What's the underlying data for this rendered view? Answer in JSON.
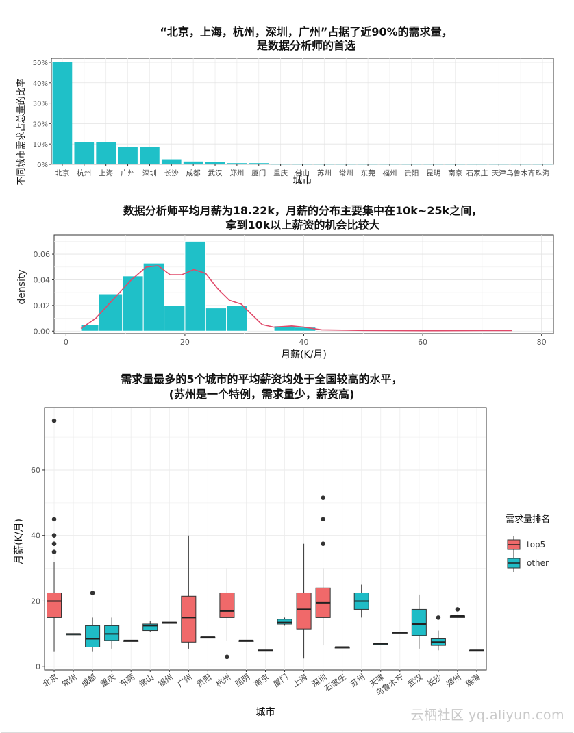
{
  "chart_data": [
    {
      "type": "bar",
      "title_lines": [
        "“北京，上海，杭州，深圳，广州”占据了近90%的需求量，",
        "是数据分析师的首选"
      ],
      "xlabel": "城市",
      "ylabel": "不同城市需求占总量的比率",
      "categories": [
        "北京",
        "杭州",
        "上海",
        "广州",
        "深圳",
        "长沙",
        "成都",
        "武汉",
        "郑州",
        "厦门",
        "重庆",
        "佛山",
        "苏州",
        "常州",
        "东莞",
        "福州",
        "贵阳",
        "昆明",
        "南京",
        "石家庄",
        "天津",
        "乌鲁木齐",
        "珠海"
      ],
      "values": [
        0.5,
        0.11,
        0.11,
        0.087,
        0.087,
        0.025,
        0.014,
        0.011,
        0.006,
        0.006,
        0.002,
        0.002,
        0.002,
        0.002,
        0.002,
        0.002,
        0.002,
        0.002,
        0.002,
        0.002,
        0.002,
        0.002,
        0.002
      ],
      "ylim": [
        0,
        0.52
      ],
      "yticks": [
        "0%",
        "10%",
        "20%",
        "30%",
        "40%",
        "50%"
      ],
      "color": "#1fc0c8"
    },
    {
      "type": "histogram",
      "title_lines": [
        "数据分析师平均月薪为18.22k，月薪的分布主要集中在10k~25k之间，",
        "拿到10k以上薪资的机会比较大"
      ],
      "xlabel": "月薪(K/月)",
      "ylabel": "density",
      "bins": [
        {
          "x0": 2.5,
          "x1": 5.5,
          "density": 0.005
        },
        {
          "x0": 5.5,
          "x1": 9.5,
          "density": 0.029
        },
        {
          "x0": 9.5,
          "x1": 13.0,
          "density": 0.043
        },
        {
          "x0": 13.0,
          "x1": 16.5,
          "density": 0.053
        },
        {
          "x0": 16.5,
          "x1": 20.0,
          "density": 0.02
        },
        {
          "x0": 20.0,
          "x1": 23.5,
          "density": 0.07
        },
        {
          "x0": 23.5,
          "x1": 27.0,
          "density": 0.018
        },
        {
          "x0": 27.0,
          "x1": 30.5,
          "density": 0.02
        },
        {
          "x0": 35.0,
          "x1": 38.5,
          "density": 0.004
        },
        {
          "x0": 38.5,
          "x1": 42.0,
          "density": 0.003
        }
      ],
      "density_curve": [
        [
          2.5,
          0.002
        ],
        [
          5,
          0.01
        ],
        [
          8,
          0.025
        ],
        [
          11,
          0.04
        ],
        [
          13.5,
          0.05
        ],
        [
          15.5,
          0.051
        ],
        [
          17.5,
          0.044
        ],
        [
          19.5,
          0.044
        ],
        [
          21.5,
          0.048
        ],
        [
          23.5,
          0.045
        ],
        [
          25.5,
          0.033
        ],
        [
          27.5,
          0.024
        ],
        [
          29.5,
          0.021
        ],
        [
          31,
          0.014
        ],
        [
          33,
          0.005
        ],
        [
          35,
          0.003
        ],
        [
          38,
          0.004
        ],
        [
          40,
          0.003
        ],
        [
          43,
          0.001
        ],
        [
          50,
          0.0005
        ],
        [
          60,
          0.0003
        ],
        [
          70,
          0.0004
        ],
        [
          75,
          0.0004
        ]
      ],
      "xlim": [
        -2,
        82
      ],
      "ylim": [
        -0.002,
        0.075
      ],
      "xticks": [
        0,
        20,
        40,
        60,
        80
      ],
      "yticks": [
        0.0,
        0.02,
        0.04,
        0.06
      ],
      "bar_color": "#1fc0c8",
      "curve_color": "#e04a6a"
    },
    {
      "type": "boxplot",
      "title_lines": [
        "需求量最多的5个城市的平均薪资均处于全国较高的水平，",
        "(苏州是一个特例，需求量少，薪资高)"
      ],
      "xlabel": "城市",
      "ylabel": "月薪(K/月)",
      "ylim": [
        -1,
        79
      ],
      "yticks": [
        0,
        20,
        40,
        60
      ],
      "legend": {
        "title": "需求量排名",
        "position": "right",
        "items": [
          {
            "label": "top5",
            "color": "#f0696a"
          },
          {
            "label": "other",
            "color": "#1fbcc6"
          }
        ]
      },
      "boxes": [
        {
          "city": "北京",
          "group": "top5",
          "min": 4.5,
          "q1": 15,
          "median": 20,
          "q3": 22.5,
          "max": 32,
          "outliers": [
            35,
            37.5,
            40,
            45,
            75
          ]
        },
        {
          "city": "常州",
          "group": "other",
          "min": 10,
          "q1": 10,
          "median": 10,
          "q3": 10,
          "max": 10,
          "outliers": []
        },
        {
          "city": "成都",
          "group": "other",
          "min": 4.5,
          "q1": 6,
          "median": 8.5,
          "q3": 12.5,
          "max": 15,
          "outliers": [
            22.5
          ]
        },
        {
          "city": "重庆",
          "group": "other",
          "min": 5.5,
          "q1": 8,
          "median": 10,
          "q3": 12.5,
          "max": 15,
          "outliers": []
        },
        {
          "city": "东莞",
          "group": "other",
          "min": 8,
          "q1": 8,
          "median": 8,
          "q3": 8,
          "max": 8,
          "outliers": []
        },
        {
          "city": "佛山",
          "group": "other",
          "min": 10.5,
          "q1": 11,
          "median": 12.5,
          "q3": 13,
          "max": 14,
          "outliers": []
        },
        {
          "city": "福州",
          "group": "other",
          "min": 13.5,
          "q1": 13.5,
          "median": 13.5,
          "q3": 13.5,
          "max": 13.5,
          "outliers": []
        },
        {
          "city": "广州",
          "group": "top5",
          "min": 5.5,
          "q1": 7.5,
          "median": 15,
          "q3": 21.5,
          "max": 40,
          "outliers": []
        },
        {
          "city": "贵阳",
          "group": "other",
          "min": 9,
          "q1": 9,
          "median": 9,
          "q3": 9,
          "max": 9,
          "outliers": []
        },
        {
          "city": "杭州",
          "group": "top5",
          "min": 8,
          "q1": 15,
          "median": 17,
          "q3": 22.5,
          "max": 30,
          "outliers": [
            3
          ]
        },
        {
          "city": "昆明",
          "group": "other",
          "min": 8,
          "q1": 8,
          "median": 8,
          "q3": 8,
          "max": 8,
          "outliers": []
        },
        {
          "city": "南京",
          "group": "other",
          "min": 5,
          "q1": 5,
          "median": 5,
          "q3": 5,
          "max": 5,
          "outliers": []
        },
        {
          "city": "厦门",
          "group": "other",
          "min": 12.5,
          "q1": 13,
          "median": 13.5,
          "q3": 14.5,
          "max": 15,
          "outliers": []
        },
        {
          "city": "上海",
          "group": "top5",
          "min": 2.5,
          "q1": 11.5,
          "median": 17.5,
          "q3": 22.5,
          "max": 37.5,
          "outliers": []
        },
        {
          "city": "深圳",
          "group": "top5",
          "min": 6.5,
          "q1": 15,
          "median": 19.5,
          "q3": 24,
          "max": 30,
          "outliers": [
            37.5,
            45,
            51.5
          ]
        },
        {
          "city": "石家庄",
          "group": "other",
          "min": 6,
          "q1": 6,
          "median": 6,
          "q3": 6,
          "max": 6,
          "outliers": []
        },
        {
          "city": "苏州",
          "group": "other",
          "min": 15,
          "q1": 17.5,
          "median": 20,
          "q3": 22.5,
          "max": 25,
          "outliers": []
        },
        {
          "city": "天津",
          "group": "other",
          "min": 7,
          "q1": 7,
          "median": 7,
          "q3": 7,
          "max": 7,
          "outliers": []
        },
        {
          "city": "乌鲁木齐",
          "group": "other",
          "min": 10.5,
          "q1": 10.5,
          "median": 10.5,
          "q3": 10.5,
          "max": 10.5,
          "outliers": []
        },
        {
          "city": "武汉",
          "group": "other",
          "min": 5.5,
          "q1": 9.5,
          "median": 13,
          "q3": 17.5,
          "max": 22,
          "outliers": []
        },
        {
          "city": "长沙",
          "group": "other",
          "min": 5,
          "q1": 6.5,
          "median": 7.5,
          "q3": 8.5,
          "max": 11,
          "outliers": [
            15
          ]
        },
        {
          "city": "郑州",
          "group": "other",
          "min": 15,
          "q1": 15,
          "median": 15.5,
          "q3": 15.5,
          "max": 15.5,
          "outliers": [
            17.5
          ]
        },
        {
          "city": "珠海",
          "group": "other",
          "min": 5,
          "q1": 5,
          "median": 5,
          "q3": 5,
          "max": 5,
          "outliers": []
        }
      ]
    }
  ],
  "watermark": "云栖社区 yq.aliyun.com"
}
